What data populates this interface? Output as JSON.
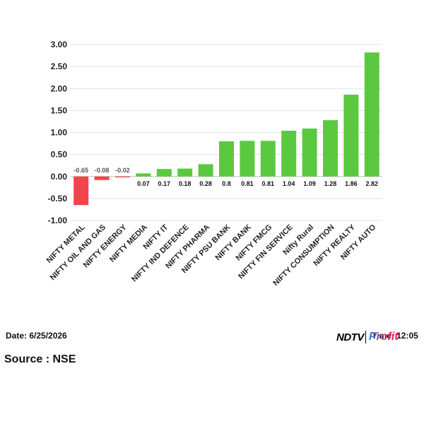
{
  "chart_data": {
    "type": "bar",
    "categories": [
      "NIFTY METAL",
      "NIFTY OIL AND GAS",
      "NIFTY ENERGY",
      "NIFTY MEDIA",
      "NIFTY IT",
      "NIFTY IND DEFENCE",
      "NIFTY PHARMA",
      "NIFTY PSU BANK",
      "NIFTY BANK",
      "NIFTY FMCG",
      "NIFTY FIN SERVICE",
      "Nifty Rural",
      "NIFTY CONSUMPTION",
      "NIFTY REALTY",
      "NIFTY AUTO"
    ],
    "values": [
      -0.65,
      -0.08,
      -0.02,
      0.07,
      0.17,
      0.18,
      0.28,
      0.8,
      0.81,
      0.81,
      1.04,
      1.09,
      1.28,
      1.86,
      2.82
    ],
    "value_labels": [
      "-0.65",
      "-0.08",
      "-0.02",
      "0.07",
      "0.17",
      "0.18",
      "0.28",
      "0.8",
      "0.81",
      "0.81",
      "1.04",
      "1.09",
      "1.28",
      "1.86",
      "2.82"
    ],
    "yticks": [
      "3.00",
      "2.50",
      "2.00",
      "1.50",
      "1.00",
      "0.50",
      "0.00",
      "-0.50",
      "-1.00"
    ],
    "ylim": [
      -1.0,
      3.0
    ],
    "grid": true,
    "colors": {
      "positive": "#5bc940",
      "negative": "#f2444a",
      "grid": "#e0e0e0",
      "axis": "#bdbdbd"
    }
  },
  "footer": {
    "date": "Date: 6/25/2026",
    "time": "Time: 12:05",
    "source": "Source : NSE",
    "logo_ndtv": "NDTV",
    "logo_profit": "Profit"
  }
}
